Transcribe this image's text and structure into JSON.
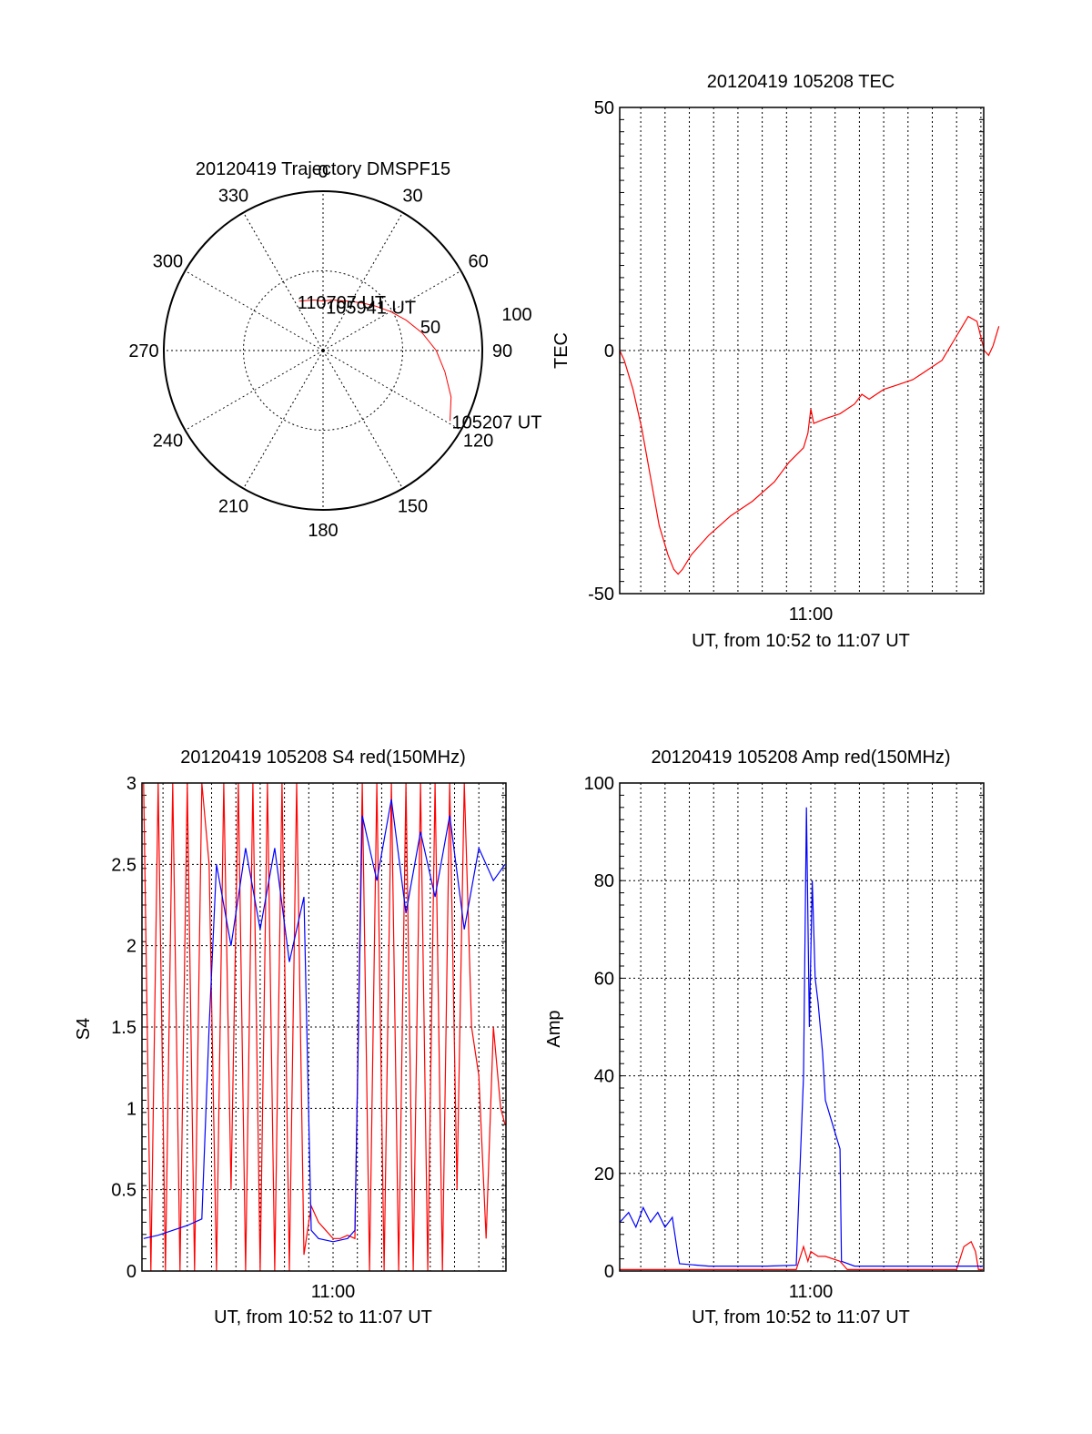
{
  "colors": {
    "red": "#ff0000",
    "blue": "#0000ff",
    "axis": "#000000"
  },
  "chart_data": [
    {
      "type": "polar",
      "title": "20120419 Trajectory DMSPF15",
      "azimuth_labels": [
        "0",
        "30",
        "60",
        "90",
        "120",
        "150",
        "180",
        "210",
        "240",
        "270",
        "300",
        "330"
      ],
      "radial_labels": [
        "50",
        "100"
      ],
      "trajectory": {
        "color": "red",
        "points_az_el": [
          [
            119,
            8
          ],
          [
            110,
            13
          ],
          [
            100,
            20
          ],
          [
            90,
            26
          ],
          [
            80,
            33
          ],
          [
            70,
            40
          ],
          [
            60,
            46
          ],
          [
            50,
            51
          ],
          [
            40,
            55
          ],
          [
            30,
            58
          ],
          [
            20,
            60
          ],
          [
            10,
            61
          ],
          [
            0,
            62
          ],
          [
            -10,
            61
          ],
          [
            -20,
            60
          ],
          [
            -26,
            59
          ]
        ]
      },
      "annotations": [
        {
          "text": "110707 UT",
          "az": -26,
          "el": 59
        },
        {
          "text": "105941 UT",
          "az": 50,
          "el": 51
        },
        {
          "text": "105207 UT",
          "az": 119,
          "el": 8
        }
      ]
    },
    {
      "type": "line",
      "title": "20120419 105208 TEC",
      "xlabel": "UT, from 10:52 to 11:07 UT",
      "ylabel": "TEC",
      "xlim": [
        10.8689,
        11.1186
      ],
      "ylim": [
        -50,
        50
      ],
      "x_ticks": [
        {
          "value": 11.0,
          "label": "11:00"
        }
      ],
      "y_ticks": [
        -50,
        0,
        50
      ],
      "series": [
        {
          "color": "red",
          "points": [
            [
              10.8689,
              0
            ],
            [
              10.872,
              -2
            ],
            [
              10.878,
              -8
            ],
            [
              10.884,
              -16
            ],
            [
              10.89,
              -26
            ],
            [
              10.896,
              -36
            ],
            [
              10.902,
              -42
            ],
            [
              10.906,
              -45
            ],
            [
              10.909,
              -46
            ],
            [
              10.912,
              -45
            ],
            [
              10.918,
              -42
            ],
            [
              10.93,
              -38
            ],
            [
              10.945,
              -34
            ],
            [
              10.96,
              -31
            ],
            [
              10.975,
              -27
            ],
            [
              10.985,
              -23
            ],
            [
              10.995,
              -20
            ],
            [
              10.998,
              -17
            ],
            [
              11.0,
              -12
            ],
            [
              11.002,
              -15
            ],
            [
              11.01,
              -14
            ],
            [
              11.02,
              -13
            ],
            [
              11.03,
              -11
            ],
            [
              11.035,
              -9
            ],
            [
              11.04,
              -10
            ],
            [
              11.05,
              -8
            ],
            [
              11.06,
              -7
            ],
            [
              11.07,
              -6
            ],
            [
              11.08,
              -4
            ],
            [
              11.09,
              -2
            ],
            [
              11.1,
              3
            ],
            [
              11.108,
              7
            ],
            [
              11.114,
              6
            ],
            [
              11.119,
              0
            ],
            [
              11.122,
              -1
            ],
            [
              11.125,
              1
            ],
            [
              11.129,
              5
            ]
          ]
        }
      ]
    },
    {
      "type": "line",
      "title": "20120419 105208 S4 red(150MHz)",
      "xlabel": "UT, from 10:52 to 11:07 UT",
      "ylabel": "S4",
      "xlim": [
        10.8689,
        11.1186
      ],
      "ylim": [
        0,
        3
      ],
      "x_ticks": [
        {
          "value": 11.0,
          "label": "11:00"
        }
      ],
      "y_ticks": [
        {
          "value": 0,
          "label": "0"
        },
        {
          "value": 0.5,
          "label": "0.5"
        },
        {
          "value": 1,
          "label": "1"
        },
        {
          "value": 1.5,
          "label": "1.5"
        },
        {
          "value": 2,
          "label": "2"
        },
        {
          "value": 2.5,
          "label": "2.5"
        },
        {
          "value": 3,
          "label": "3"
        }
      ],
      "series": [
        {
          "color": "red",
          "points": [
            [
              10.87,
              3
            ],
            [
              10.875,
              0
            ],
            [
              10.88,
              3
            ],
            [
              10.885,
              0
            ],
            [
              10.89,
              3
            ],
            [
              10.895,
              0
            ],
            [
              10.9,
              3
            ],
            [
              10.905,
              0
            ],
            [
              10.91,
              3
            ],
            [
              10.915,
              2.5
            ],
            [
              10.92,
              0
            ],
            [
              10.925,
              3
            ],
            [
              10.93,
              0.5
            ],
            [
              10.935,
              3
            ],
            [
              10.94,
              0
            ],
            [
              10.945,
              3
            ],
            [
              10.95,
              0
            ],
            [
              10.955,
              3
            ],
            [
              10.96,
              0
            ],
            [
              10.965,
              3
            ],
            [
              10.97,
              0
            ],
            [
              10.975,
              3
            ],
            [
              10.98,
              0.1
            ],
            [
              10.985,
              0.4
            ],
            [
              10.99,
              0.3
            ],
            [
              10.995,
              0.25
            ],
            [
              11.0,
              0.2
            ],
            [
              11.005,
              0.2
            ],
            [
              11.01,
              0.22
            ],
            [
              11.015,
              0.2
            ],
            [
              11.02,
              3
            ],
            [
              11.025,
              0
            ],
            [
              11.03,
              3
            ],
            [
              11.035,
              0
            ],
            [
              11.04,
              3
            ],
            [
              11.045,
              0
            ],
            [
              11.05,
              3
            ],
            [
              11.055,
              0
            ],
            [
              11.06,
              3
            ],
            [
              11.065,
              0
            ],
            [
              11.07,
              3
            ],
            [
              11.075,
              0
            ],
            [
              11.08,
              3
            ],
            [
              11.085,
              0.5
            ],
            [
              11.09,
              3
            ],
            [
              11.095,
              1.5
            ],
            [
              11.1,
              1.2
            ],
            [
              11.105,
              0.2
            ],
            [
              11.11,
              1.5
            ],
            [
              11.115,
              1.0
            ],
            [
              11.118,
              0.9
            ]
          ]
        },
        {
          "color": "blue",
          "points": [
            [
              10.87,
              0.2
            ],
            [
              10.88,
              0.22
            ],
            [
              10.89,
              0.25
            ],
            [
              10.9,
              0.28
            ],
            [
              10.91,
              0.32
            ],
            [
              10.915,
              1.5
            ],
            [
              10.92,
              2.5
            ],
            [
              10.93,
              2.0
            ],
            [
              10.94,
              2.6
            ],
            [
              10.95,
              2.1
            ],
            [
              10.96,
              2.6
            ],
            [
              10.97,
              1.9
            ],
            [
              10.98,
              2.3
            ],
            [
              10.985,
              0.25
            ],
            [
              10.99,
              0.2
            ],
            [
              11.0,
              0.18
            ],
            [
              11.01,
              0.2
            ],
            [
              11.015,
              0.25
            ],
            [
              11.02,
              2.8
            ],
            [
              11.03,
              2.4
            ],
            [
              11.04,
              2.9
            ],
            [
              11.05,
              2.2
            ],
            [
              11.06,
              2.7
            ],
            [
              11.07,
              2.3
            ],
            [
              11.08,
              2.8
            ],
            [
              11.09,
              2.1
            ],
            [
              11.1,
              2.6
            ],
            [
              11.11,
              2.4
            ],
            [
              11.118,
              2.5
            ]
          ]
        }
      ]
    },
    {
      "type": "line",
      "title": "20120419 105208 Amp red(150MHz)",
      "xlabel": "UT, from 10:52 to 11:07 UT",
      "ylabel": "Amp",
      "xlim": [
        10.8689,
        11.1186
      ],
      "ylim": [
        0,
        100
      ],
      "x_ticks": [
        {
          "value": 11.0,
          "label": "11:00"
        }
      ],
      "y_ticks": [
        0,
        20,
        40,
        60,
        80,
        100
      ],
      "series": [
        {
          "color": "red",
          "points": [
            [
              10.869,
              0.3
            ],
            [
              10.91,
              0.3
            ],
            [
              10.99,
              0.3
            ],
            [
              10.995,
              5
            ],
            [
              10.998,
              2
            ],
            [
              11.0,
              4
            ],
            [
              11.005,
              3
            ],
            [
              11.01,
              3
            ],
            [
              11.02,
              2
            ],
            [
              11.025,
              0.3
            ],
            [
              11.08,
              0.3
            ],
            [
              11.09,
              0.3
            ],
            [
              11.1,
              0.3
            ],
            [
              11.105,
              5
            ],
            [
              11.11,
              6
            ],
            [
              11.113,
              4
            ],
            [
              11.115,
              0.3
            ],
            [
              11.118,
              0.3
            ]
          ]
        },
        {
          "color": "blue",
          "points": [
            [
              10.869,
              10
            ],
            [
              10.875,
              12
            ],
            [
              10.88,
              9
            ],
            [
              10.885,
              13
            ],
            [
              10.89,
              10
            ],
            [
              10.895,
              12
            ],
            [
              10.9,
              9
            ],
            [
              10.905,
              11
            ],
            [
              10.909,
              3
            ],
            [
              10.91,
              1.5
            ],
            [
              10.93,
              1
            ],
            [
              10.95,
              1
            ],
            [
              10.97,
              1
            ],
            [
              10.99,
              1.2
            ],
            [
              10.995,
              40
            ],
            [
              10.997,
              95
            ],
            [
              10.999,
              50
            ],
            [
              11.001,
              80
            ],
            [
              11.003,
              60
            ],
            [
              11.005,
              55
            ],
            [
              11.008,
              45
            ],
            [
              11.01,
              35
            ],
            [
              11.015,
              30
            ],
            [
              11.02,
              25
            ],
            [
              11.021,
              2
            ],
            [
              11.03,
              1
            ],
            [
              11.06,
              1
            ],
            [
              11.09,
              1
            ],
            [
              11.118,
              1
            ]
          ]
        }
      ]
    }
  ]
}
